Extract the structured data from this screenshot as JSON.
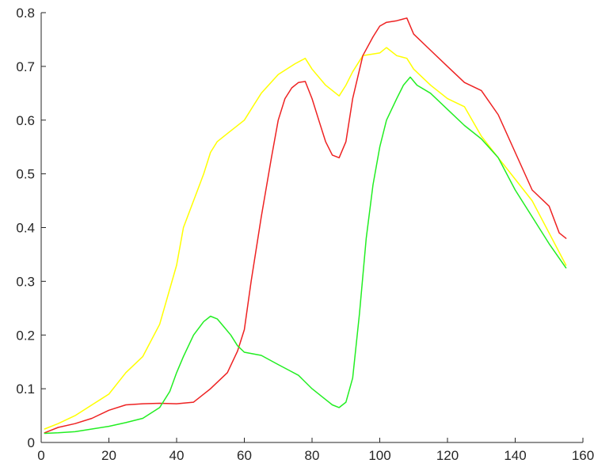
{
  "chart_data": {
    "type": "line",
    "title": "",
    "xlabel": "",
    "ylabel": "",
    "xlim": [
      0,
      160
    ],
    "ylim": [
      0,
      0.8
    ],
    "x_ticks": [
      0,
      20,
      40,
      60,
      80,
      100,
      120,
      140,
      160
    ],
    "y_ticks": [
      0,
      0.1,
      0.2,
      0.3,
      0.4,
      0.5,
      0.6,
      0.7,
      0.8
    ],
    "x_tick_labels": [
      "0",
      "20",
      "40",
      "60",
      "80",
      "100",
      "120",
      "140",
      "160"
    ],
    "y_tick_labels": [
      "0",
      "0.1",
      "0.2",
      "0.3",
      "0.4",
      "0.5",
      "0.6",
      "0.7",
      "0.8"
    ],
    "grid": false,
    "legend": "none",
    "series": [
      {
        "color": "#ffff00",
        "x": [
          1,
          5,
          10,
          15,
          20,
          25,
          30,
          35,
          40,
          42,
          45,
          48,
          50,
          52,
          55,
          60,
          63,
          65,
          70,
          75,
          78,
          80,
          84,
          88,
          90,
          92,
          95,
          100,
          102,
          105,
          108,
          110,
          115,
          120,
          125,
          130,
          135,
          140,
          145,
          150,
          155
        ],
        "y": [
          0.025,
          0.035,
          0.05,
          0.07,
          0.09,
          0.13,
          0.16,
          0.22,
          0.33,
          0.4,
          0.45,
          0.5,
          0.54,
          0.56,
          0.575,
          0.6,
          0.63,
          0.65,
          0.685,
          0.705,
          0.715,
          0.695,
          0.665,
          0.645,
          0.665,
          0.69,
          0.72,
          0.725,
          0.735,
          0.72,
          0.715,
          0.695,
          0.665,
          0.64,
          0.625,
          0.57,
          0.53,
          0.49,
          0.45,
          0.39,
          0.33
        ]
      },
      {
        "color": "#ee2222",
        "x": [
          1,
          5,
          10,
          15,
          20,
          25,
          30,
          35,
          40,
          45,
          48,
          50,
          55,
          58,
          60,
          62,
          65,
          68,
          70,
          72,
          74,
          76,
          78,
          80,
          82,
          84,
          86,
          88,
          90,
          92,
          95,
          98,
          100,
          102,
          105,
          108,
          110,
          115,
          120,
          125,
          130,
          135,
          140,
          145,
          150,
          153,
          155
        ],
        "y": [
          0.018,
          0.028,
          0.035,
          0.045,
          0.06,
          0.07,
          0.072,
          0.073,
          0.072,
          0.075,
          0.09,
          0.1,
          0.13,
          0.17,
          0.21,
          0.3,
          0.42,
          0.53,
          0.6,
          0.64,
          0.66,
          0.67,
          0.672,
          0.64,
          0.6,
          0.56,
          0.535,
          0.53,
          0.56,
          0.64,
          0.72,
          0.755,
          0.775,
          0.782,
          0.785,
          0.79,
          0.76,
          0.73,
          0.7,
          0.67,
          0.655,
          0.61,
          0.54,
          0.47,
          0.44,
          0.39,
          0.38
        ]
      },
      {
        "color": "#22ee22",
        "x": [
          1,
          5,
          10,
          15,
          20,
          25,
          30,
          35,
          38,
          40,
          42,
          45,
          48,
          50,
          52,
          54,
          56,
          58,
          60,
          65,
          70,
          73,
          76,
          80,
          83,
          86,
          88,
          90,
          92,
          94,
          96,
          98,
          100,
          102,
          105,
          107,
          109,
          111,
          115,
          120,
          125,
          130,
          135,
          140,
          145,
          150,
          155
        ],
        "y": [
          0.017,
          0.018,
          0.02,
          0.025,
          0.03,
          0.037,
          0.045,
          0.065,
          0.095,
          0.13,
          0.16,
          0.2,
          0.225,
          0.235,
          0.23,
          0.215,
          0.2,
          0.18,
          0.168,
          0.162,
          0.145,
          0.135,
          0.125,
          0.1,
          0.085,
          0.07,
          0.065,
          0.075,
          0.12,
          0.24,
          0.38,
          0.48,
          0.55,
          0.6,
          0.64,
          0.665,
          0.68,
          0.665,
          0.65,
          0.62,
          0.59,
          0.565,
          0.53,
          0.47,
          0.42,
          0.37,
          0.325
        ]
      }
    ]
  }
}
